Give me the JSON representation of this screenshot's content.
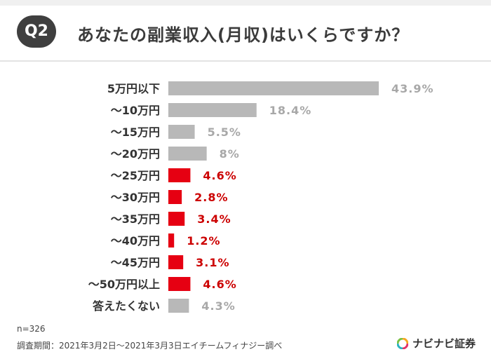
{
  "header": {
    "badge": "Q2",
    "question": "あなたの副業収入(月収)はいくらですか？"
  },
  "chart_data": {
    "type": "bar",
    "orientation": "horizontal",
    "categories": [
      "5万円以下",
      "～10万円",
      "～15万円",
      "～20万円",
      "～25万円",
      "～30万円",
      "～35万円",
      "～40万円",
      "～45万円",
      "～50万円以上",
      "答えたくない"
    ],
    "values": [
      43.9,
      18.4,
      5.5,
      8,
      4.6,
      2.8,
      3.4,
      1.2,
      3.1,
      4.6,
      4.3
    ],
    "value_labels": [
      "43.9%",
      "18.4%",
      "5.5%",
      "8%",
      "4.6%",
      "2.8%",
      "3.4%",
      "1.2%",
      "3.1%",
      "4.6%",
      "4.3%"
    ],
    "highlighted": [
      false,
      false,
      false,
      false,
      true,
      true,
      true,
      true,
      true,
      true,
      false
    ],
    "colors": {
      "default": "#b8b8b8",
      "highlight": "#e60012",
      "default_label": "#a8a8a8",
      "highlight_label": "#cc0000"
    },
    "xlim": [
      0,
      43.9
    ],
    "grid": false,
    "legend": "none"
  },
  "footer": {
    "sample_size": "n=326",
    "survey_period": "調査期間：2021年3月2日～2021年3月3日エイチームフィナジー調べ",
    "brand": "ナビナビ証券"
  }
}
